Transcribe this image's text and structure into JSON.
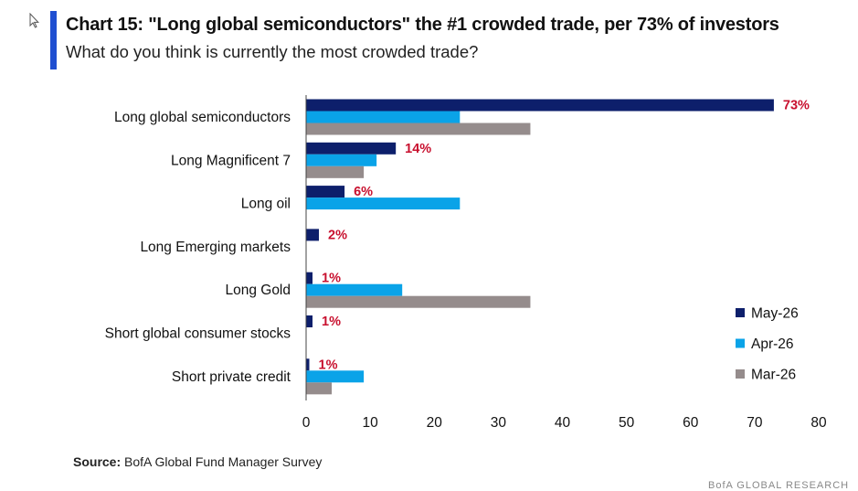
{
  "header": {
    "title": "Chart 15: \"Long global semiconductors\" the #1 crowded trade, per 73% of investors",
    "subtitle": "What do you think is currently the most crowded trade?",
    "accent_color": "#1f4fd1"
  },
  "footer": {
    "source_label": "Source:",
    "source_text": "BofA Global Fund Manager Survey",
    "watermark": "BofA GLOBAL RESEARCH"
  },
  "chart_data": {
    "type": "bar",
    "orientation": "horizontal",
    "categories": [
      "Long global semiconductors",
      "Long Magnificent 7",
      "Long oil",
      "Long Emerging markets",
      "Long Gold",
      "Short global consumer stocks",
      "Short private credit"
    ],
    "series": [
      {
        "name": "May-26",
        "color": "#0d1f6b",
        "values": [
          73,
          14,
          6,
          2,
          1,
          1,
          0.5
        ]
      },
      {
        "name": "Apr-26",
        "color": "#0aa3e8",
        "values": [
          24,
          11,
          24,
          null,
          15,
          null,
          9
        ]
      },
      {
        "name": "Mar-26",
        "color": "#958c8c",
        "values": [
          35,
          9,
          null,
          null,
          35,
          null,
          4
        ]
      }
    ],
    "data_labels": [
      "73%",
      "14%",
      "6%",
      "2%",
      "1%",
      "1%",
      "1%"
    ],
    "data_label_color": "#c8102e",
    "xlim": [
      0,
      80
    ],
    "xticks": [
      0,
      10,
      20,
      30,
      40,
      50,
      60,
      70,
      80
    ],
    "legend_position": "right",
    "grid": false
  }
}
